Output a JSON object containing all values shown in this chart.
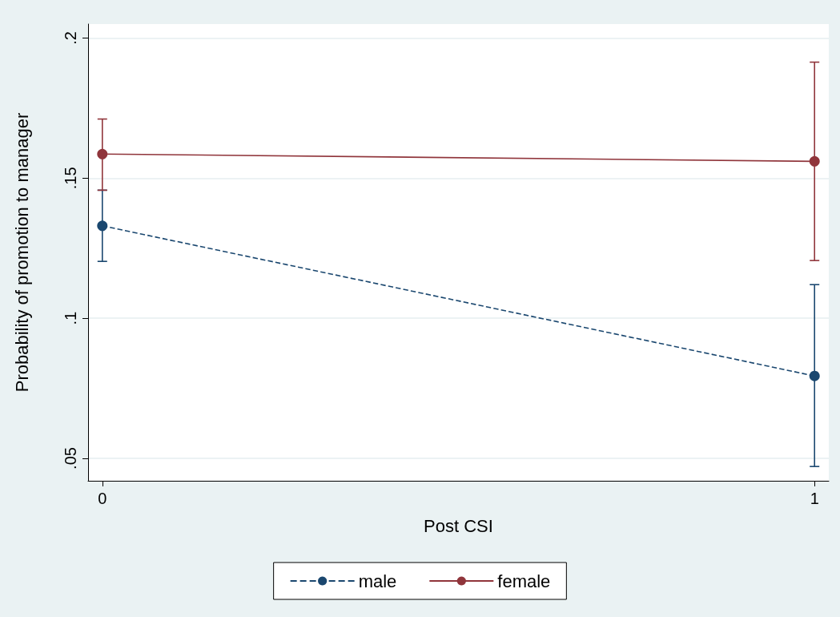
{
  "chart_data": {
    "type": "line",
    "xlabel": "Post CSI",
    "ylabel": "Probability of promotion to manager",
    "x": [
      0,
      1
    ],
    "xlim": [
      -0.02,
      1.02
    ],
    "xticks": [
      0,
      1
    ],
    "ylim": [
      0.042,
      0.205
    ],
    "yticks": [
      {
        "value": 0.05,
        "label": ".05"
      },
      {
        "value": 0.1,
        "label": ".1"
      },
      {
        "value": 0.15,
        "label": ".15"
      },
      {
        "value": 0.2,
        "label": ".2"
      }
    ],
    "grid": "y",
    "legend": "bottom",
    "marker": "circle",
    "series": [
      {
        "name": "male",
        "color": "#1a476f",
        "line_style": "dashed",
        "values": [
          0.133,
          0.0794
        ],
        "errors": [
          [
            0.1203,
            0.1457
          ],
          [
            0.0471,
            0.112
          ]
        ]
      },
      {
        "name": "female",
        "color": "#90353b",
        "line_style": "solid",
        "values": [
          0.1586,
          0.156
        ],
        "errors": [
          [
            0.1457,
            0.1711
          ],
          [
            0.1206,
            0.1914
          ]
        ]
      }
    ]
  }
}
